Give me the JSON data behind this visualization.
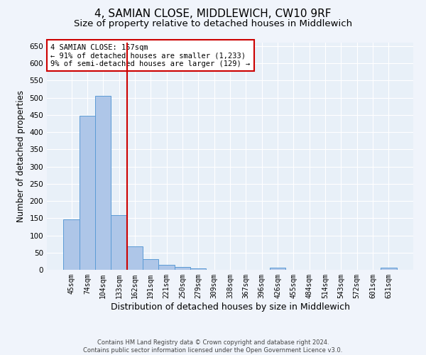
{
  "title1": "4, SAMIAN CLOSE, MIDDLEWICH, CW10 9RF",
  "title2": "Size of property relative to detached houses in Middlewich",
  "xlabel": "Distribution of detached houses by size in Middlewich",
  "ylabel": "Number of detached properties",
  "footer1": "Contains HM Land Registry data © Crown copyright and database right 2024.",
  "footer2": "Contains public sector information licensed under the Open Government Licence v3.0.",
  "categories": [
    "45sqm",
    "74sqm",
    "104sqm",
    "133sqm",
    "162sqm",
    "191sqm",
    "221sqm",
    "250sqm",
    "279sqm",
    "309sqm",
    "338sqm",
    "367sqm",
    "396sqm",
    "426sqm",
    "455sqm",
    "484sqm",
    "514sqm",
    "543sqm",
    "572sqm",
    "601sqm",
    "631sqm"
  ],
  "values": [
    147,
    448,
    506,
    158,
    68,
    31,
    14,
    9,
    5,
    0,
    0,
    0,
    0,
    6,
    0,
    0,
    0,
    0,
    0,
    0,
    6
  ],
  "bar_color": "#aec6e8",
  "bar_edge_color": "#5b9bd5",
  "vline_color": "#cc0000",
  "annotation_text": "4 SAMIAN CLOSE: 157sqm\n← 91% of detached houses are smaller (1,233)\n9% of semi-detached houses are larger (129) →",
  "annotation_box_color": "#ffffff",
  "annotation_box_edge": "#cc0000",
  "ylim": [
    0,
    660
  ],
  "yticks": [
    0,
    50,
    100,
    150,
    200,
    250,
    300,
    350,
    400,
    450,
    500,
    550,
    600,
    650
  ],
  "plot_bg": "#e8f0f8",
  "fig_bg": "#f0f4fb",
  "grid_color": "#ffffff",
  "title1_fontsize": 11,
  "title2_fontsize": 9.5,
  "xlabel_fontsize": 9,
  "ylabel_fontsize": 8.5,
  "annotation_fontsize": 7.5,
  "footer_fontsize": 6
}
